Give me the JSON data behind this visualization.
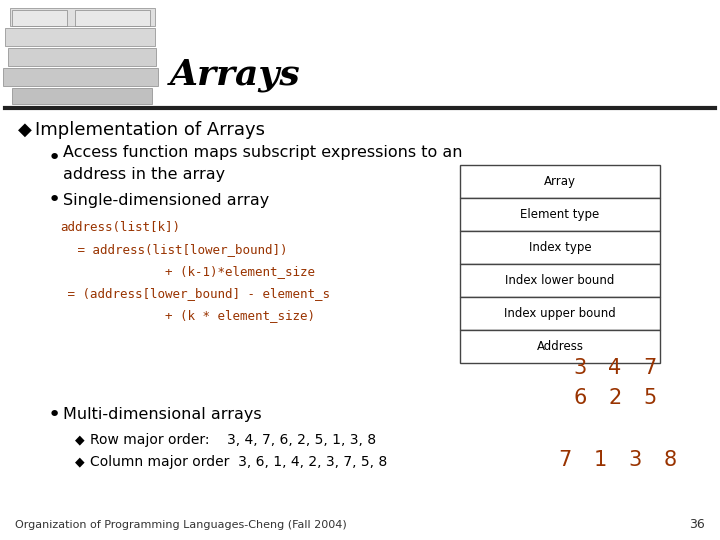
{
  "title": "Arrays",
  "bg_color": "#ffffff",
  "title_color": "#000000",
  "title_fontsize": 26,
  "text_color": "#000000",
  "code_color": "#993300",
  "red_color": "#993300",
  "table_labels": [
    "Array",
    "Element type",
    "Index type",
    "Index lower bound",
    "Index upper bound",
    "Address"
  ],
  "sub3_text": "Multi-dimensional arrays",
  "footer": "Organization of Programming Languages-Cheng (Fall 2004)",
  "page_num": "36"
}
